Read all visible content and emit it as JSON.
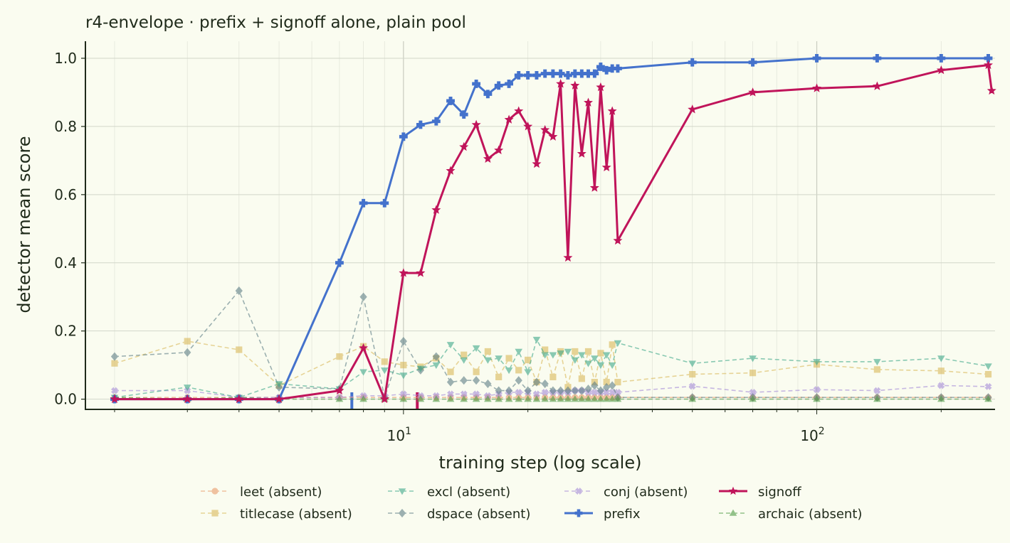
{
  "chart_data": {
    "type": "line",
    "title": "r4-envelope · prefix + signoff alone, plain pool",
    "xlabel": "training step (log scale)",
    "ylabel": "detector mean score",
    "x_scale": "log",
    "xlim": [
      1.7,
      270
    ],
    "ylim": [
      -0.03,
      1.05
    ],
    "x_ticks": [
      {
        "value": 10,
        "base": "10",
        "exp": "1"
      },
      {
        "value": 100,
        "base": "10",
        "exp": "2"
      }
    ],
    "y_ticks": [
      {
        "value": 0.0,
        "label": "0.0"
      },
      {
        "value": 0.2,
        "label": "0.2"
      },
      {
        "value": 0.4,
        "label": "0.4"
      },
      {
        "value": 0.6,
        "label": "0.6"
      },
      {
        "value": 0.8,
        "label": "0.8"
      },
      {
        "value": 1.0,
        "label": "1.0"
      }
    ],
    "grid": true,
    "legend_position": "bottom-center",
    "markers_x": [
      {
        "x": 7.5,
        "color": "#4472cc"
      },
      {
        "x": 10.8,
        "color": "#c0145a"
      }
    ],
    "series": [
      {
        "name": "leet (absent)",
        "color": "#e89a6a",
        "marker": "circle",
        "style": "dashed",
        "x": [
          2,
          3,
          4,
          5,
          7,
          8,
          9,
          10,
          11,
          12,
          13,
          14,
          15,
          16,
          17,
          18,
          19,
          20,
          21,
          22,
          23,
          24,
          25,
          26,
          27,
          28,
          29,
          30,
          31,
          32,
          33,
          50,
          70,
          100,
          140,
          200,
          260
        ],
        "y": [
          0.005,
          0.005,
          0.005,
          0.005,
          0.005,
          0.005,
          0.005,
          0.005,
          0.005,
          0.005,
          0.005,
          0.005,
          0.005,
          0.005,
          0.005,
          0.005,
          0.005,
          0.005,
          0.005,
          0.005,
          0.005,
          0.005,
          0.005,
          0.005,
          0.005,
          0.005,
          0.005,
          0.005,
          0.005,
          0.005,
          0.005,
          0.005,
          0.005,
          0.005,
          0.005,
          0.005,
          0.005
        ]
      },
      {
        "name": "titlecase (absent)",
        "color": "#d9b95a",
        "marker": "square",
        "style": "dashed",
        "x": [
          2,
          3,
          4,
          5,
          7,
          8,
          9,
          10,
          11,
          12,
          13,
          14,
          15,
          16,
          17,
          18,
          19,
          20,
          21,
          22,
          23,
          24,
          25,
          26,
          27,
          28,
          29,
          30,
          31,
          32,
          33,
          50,
          70,
          100,
          140,
          200,
          260
        ],
        "y": [
          0.105,
          0.17,
          0.145,
          0.04,
          0.125,
          0.155,
          0.11,
          0.1,
          0.095,
          0.12,
          0.08,
          0.13,
          0.08,
          0.14,
          0.065,
          0.12,
          0.085,
          0.115,
          0.05,
          0.145,
          0.065,
          0.14,
          0.035,
          0.14,
          0.06,
          0.14,
          0.05,
          0.135,
          0.05,
          0.16,
          0.05,
          0.073,
          0.077,
          0.102,
          0.087,
          0.083,
          0.073
        ]
      },
      {
        "name": "excl (absent)",
        "color": "#3fa88a",
        "marker": "triangle-down",
        "style": "dashed",
        "x": [
          2,
          3,
          4,
          5,
          7,
          8,
          9,
          10,
          11,
          12,
          13,
          14,
          15,
          16,
          17,
          18,
          19,
          20,
          21,
          22,
          23,
          24,
          25,
          26,
          27,
          28,
          29,
          30,
          31,
          32,
          33,
          50,
          70,
          100,
          140,
          200,
          260
        ],
        "y": [
          0.005,
          0.035,
          0.005,
          0.045,
          0.03,
          0.08,
          0.085,
          0.07,
          0.09,
          0.1,
          0.16,
          0.115,
          0.15,
          0.115,
          0.12,
          0.085,
          0.14,
          0.08,
          0.175,
          0.13,
          0.13,
          0.135,
          0.14,
          0.115,
          0.13,
          0.105,
          0.12,
          0.1,
          0.13,
          0.1,
          0.165,
          0.105,
          0.12,
          0.11,
          0.11,
          0.12,
          0.097
        ]
      },
      {
        "name": "dspace (absent)",
        "color": "#5e7f86",
        "marker": "diamond",
        "style": "dashed",
        "x": [
          2,
          3,
          4,
          5,
          7,
          8,
          9,
          10,
          11,
          12,
          13,
          14,
          15,
          16,
          17,
          18,
          19,
          20,
          21,
          22,
          23,
          24,
          25,
          26,
          27,
          28,
          29,
          30,
          31,
          32,
          33,
          50,
          70,
          100,
          140,
          200,
          260
        ],
        "y": [
          0.125,
          0.137,
          0.318,
          0.035,
          0.03,
          0.3,
          0.005,
          0.17,
          0.085,
          0.125,
          0.05,
          0.055,
          0.055,
          0.045,
          0.025,
          0.025,
          0.055,
          0.025,
          0.05,
          0.045,
          0.025,
          0.025,
          0.025,
          0.025,
          0.025,
          0.03,
          0.04,
          0.025,
          0.035,
          0.04,
          0.005,
          0.005,
          0.005,
          0.005,
          0.005,
          0.005,
          0.005
        ]
      },
      {
        "name": "conj (absent)",
        "color": "#a48ad8",
        "marker": "cross",
        "style": "dashed",
        "x": [
          2,
          3,
          4,
          5,
          7,
          8,
          9,
          10,
          11,
          12,
          13,
          14,
          15,
          16,
          17,
          18,
          19,
          20,
          21,
          22,
          23,
          24,
          25,
          26,
          27,
          28,
          29,
          30,
          31,
          32,
          33,
          50,
          70,
          100,
          140,
          200,
          260
        ],
        "y": [
          0.025,
          0.025,
          0.005,
          0.005,
          0.005,
          0.01,
          0.01,
          0.015,
          0.01,
          0.01,
          0.015,
          0.015,
          0.015,
          0.01,
          0.015,
          0.02,
          0.02,
          0.02,
          0.015,
          0.02,
          0.02,
          0.02,
          0.02,
          0.025,
          0.025,
          0.02,
          0.02,
          0.02,
          0.02,
          0.02,
          0.02,
          0.038,
          0.02,
          0.028,
          0.025,
          0.04,
          0.037
        ]
      },
      {
        "name": "prefix",
        "color": "#4472cc",
        "marker": "plus",
        "style": "solid",
        "x": [
          2,
          3,
          4,
          5,
          7,
          8,
          9,
          10,
          11,
          12,
          13,
          14,
          15,
          16,
          17,
          18,
          19,
          20,
          21,
          22,
          23,
          24,
          25,
          26,
          27,
          28,
          29,
          30,
          31,
          32,
          33,
          50,
          70,
          100,
          140,
          200,
          260
        ],
        "y": [
          0.0,
          0.0,
          0.0,
          0.0,
          0.4,
          0.575,
          0.575,
          0.77,
          0.805,
          0.815,
          0.875,
          0.835,
          0.925,
          0.895,
          0.92,
          0.925,
          0.95,
          0.95,
          0.95,
          0.955,
          0.955,
          0.955,
          0.95,
          0.955,
          0.955,
          0.955,
          0.955,
          0.975,
          0.965,
          0.97,
          0.97,
          0.988,
          0.988,
          1.0,
          1.0,
          1.0,
          1.0
        ]
      },
      {
        "name": "signoff",
        "color": "#c0145a",
        "marker": "star",
        "style": "solid",
        "x": [
          2,
          3,
          4,
          5,
          7,
          8,
          9,
          10,
          11,
          12,
          13,
          14,
          15,
          16,
          17,
          18,
          19,
          20,
          21,
          22,
          23,
          24,
          25,
          26,
          27,
          28,
          29,
          30,
          31,
          32,
          33,
          50,
          70,
          100,
          140,
          200,
          260,
          265
        ],
        "y": [
          0.0,
          0.0,
          0.0,
          0.0,
          0.025,
          0.15,
          0.0,
          0.37,
          0.37,
          0.555,
          0.67,
          0.74,
          0.805,
          0.705,
          0.73,
          0.82,
          0.845,
          0.8,
          0.69,
          0.79,
          0.77,
          0.925,
          0.415,
          0.92,
          0.72,
          0.87,
          0.62,
          0.915,
          0.68,
          0.845,
          0.465,
          0.85,
          0.9,
          0.912,
          0.918,
          0.965,
          0.98,
          0.905
        ]
      },
      {
        "name": "archaic (absent)",
        "color": "#4e9a45",
        "marker": "triangle-up",
        "style": "dashed",
        "x": [
          2,
          3,
          4,
          5,
          7,
          8,
          9,
          10,
          11,
          12,
          13,
          14,
          15,
          16,
          17,
          18,
          19,
          20,
          21,
          22,
          23,
          24,
          25,
          26,
          27,
          28,
          29,
          30,
          31,
          32,
          33,
          50,
          70,
          100,
          140,
          200,
          260
        ],
        "y": [
          0.005,
          0.0,
          0.005,
          0.0,
          0.0,
          0.0,
          0.0,
          0.0,
          0.0,
          0.0,
          0.0,
          0.0,
          0.0,
          0.0,
          0.0,
          0.0,
          0.0,
          0.0,
          0.0,
          0.0,
          0.0,
          0.0,
          0.0,
          0.0,
          0.0,
          0.0,
          0.0,
          0.0,
          0.0,
          0.0,
          0.0,
          0.0,
          0.0,
          0.0,
          0.0,
          0.0,
          0.0
        ]
      }
    ]
  }
}
